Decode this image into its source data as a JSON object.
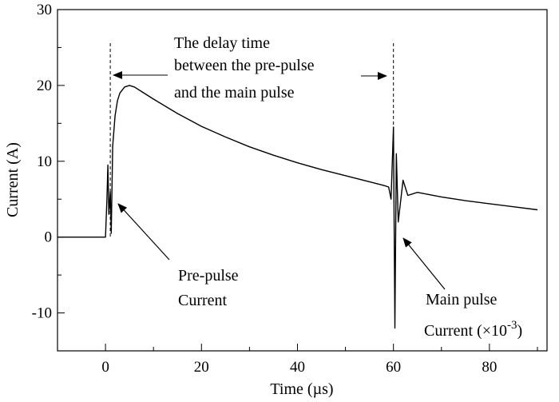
{
  "chart_data": {
    "type": "line",
    "title": "",
    "xlabel": "Time (µs)",
    "ylabel": "Current (A)",
    "xlim": [
      -10,
      92
    ],
    "ylim": [
      -15,
      30
    ],
    "xticks": [
      0,
      20,
      40,
      60,
      80
    ],
    "yticks": [
      -10,
      0,
      10,
      20,
      30
    ],
    "xtick_labels": [
      "0",
      "20",
      "40",
      "60",
      "80"
    ],
    "ytick_labels": [
      "-10",
      "0",
      "10",
      "20",
      "30"
    ],
    "series": [
      {
        "name": "Current",
        "color": "#000000",
        "x": [
          -10,
          -5,
          0,
          0.3,
          0.5,
          0.7,
          1.0,
          1.2,
          1.5,
          2,
          2.5,
          3,
          4,
          5,
          6,
          8,
          10,
          15,
          20,
          25,
          30,
          35,
          40,
          45,
          50,
          55,
          58,
          59,
          59.5,
          60,
          60.3,
          60.6,
          61,
          62,
          63,
          65,
          70,
          75,
          80,
          85,
          90
        ],
        "y": [
          0,
          0,
          0,
          5,
          9.5,
          3,
          6,
          0.5,
          12,
          16,
          18,
          19,
          19.8,
          20,
          19.8,
          19,
          18.2,
          16.3,
          14.6,
          13.2,
          11.9,
          10.8,
          9.8,
          8.9,
          8.1,
          7.3,
          6.8,
          6.6,
          5,
          14.5,
          -12,
          11,
          2,
          7.5,
          5.5,
          5.9,
          5.3,
          4.8,
          4.4,
          4.0,
          3.6
        ]
      }
    ],
    "markers": [
      {
        "name": "pre-pulse-marker",
        "x": 1
      },
      {
        "name": "main-pulse-marker",
        "x": 60
      }
    ],
    "annotations": {
      "delay_line1": "The delay time",
      "delay_line2": "between the  pre-pulse",
      "delay_line3": "and the main pulse",
      "pre_pulse_line1": "Pre-pulse",
      "pre_pulse_line2": "Current",
      "main_pulse_line1": "Main pulse",
      "main_pulse_line2": "Current (×10",
      "main_pulse_exp": "-3",
      "main_pulse_close": ")"
    }
  }
}
